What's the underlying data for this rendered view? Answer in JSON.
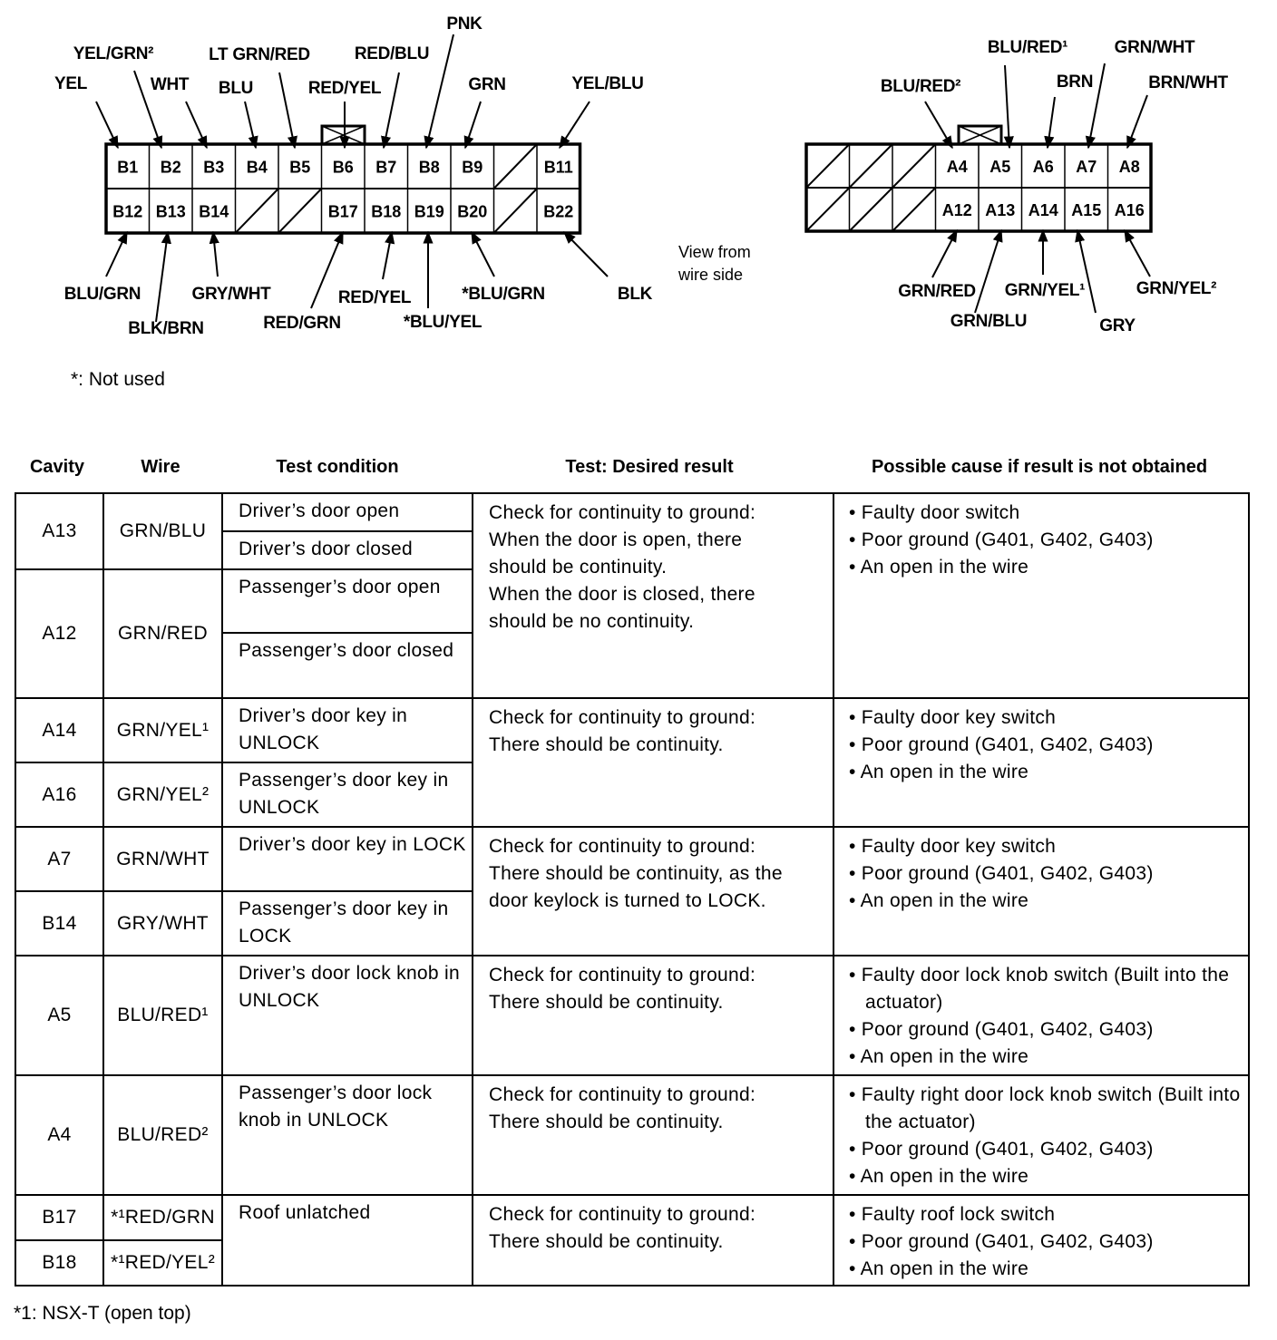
{
  "connector_b": {
    "cavities_top": [
      "B1",
      "B2",
      "B3",
      "B4",
      "B5",
      "B6",
      "B7",
      "B8",
      "B9",
      "",
      "B11"
    ],
    "cavities_bottom": [
      "B12",
      "B13",
      "B14",
      "",
      "",
      "B17",
      "B18",
      "B19",
      "B20",
      "",
      "B22"
    ],
    "wires_top": [
      "YEL",
      "YEL/GRN²",
      "WHT",
      "BLU",
      "LT GRN/RED",
      "RED/YEL",
      "RED/BLU",
      "PNK",
      "GRN",
      "YEL/BLU"
    ],
    "wires_bottom": [
      "BLU/GRN",
      "BLK/BRN",
      "GRY/WHT",
      "RED/GRN",
      "RED/YEL",
      "*BLU/YEL",
      "*BLU/GRN",
      "BLK"
    ]
  },
  "connector_a": {
    "cavities_top": [
      "",
      "",
      "",
      "A4",
      "A5",
      "A6",
      "A7",
      "A8"
    ],
    "cavities_bottom": [
      "",
      "",
      "",
      "A12",
      "A13",
      "A14",
      "A15",
      "A16"
    ],
    "wires_top": [
      "BLU/RED²",
      "BLU/RED¹",
      "BRN",
      "GRN/WHT",
      "BRN/WHT"
    ],
    "wires_bottom": [
      "GRN/RED",
      "GRN/BLU",
      "GRN/YEL¹",
      "GRY",
      "GRN/YEL²"
    ]
  },
  "view_note": [
    "View from",
    "wire side"
  ],
  "not_used_note": "*: Not used",
  "table": {
    "headers": [
      "Cavity",
      "Wire",
      "Test condition",
      "Test: Desired result",
      "Possible cause if result is not obtained"
    ],
    "groups": [
      {
        "rows": [
          {
            "cavity": "A13",
            "wire": "GRN/BLU",
            "conditions": [
              "Driver’s door open",
              "Driver’s door closed"
            ]
          },
          {
            "cavity": "A12",
            "wire": "GRN/RED",
            "conditions": [
              "Passenger’s door open",
              "Passenger’s door closed"
            ]
          }
        ],
        "result": [
          "Check for continuity to ground:",
          "When the door is open, there",
          "should be continuity.",
          "When the door is closed, there",
          "should be no continuity."
        ],
        "causes": [
          "• Faulty door switch",
          "• Poor ground (G401, G402, G403)",
          "• An open in the wire"
        ]
      },
      {
        "rows": [
          {
            "cavity": "A14",
            "wire": "GRN/YEL¹",
            "conditions": [
              "Driver’s door key in UNLOCK"
            ]
          },
          {
            "cavity": "A16",
            "wire": "GRN/YEL²",
            "conditions": [
              "Passenger’s door key in UNLOCK"
            ]
          }
        ],
        "result": [
          "Check for continuity to ground:",
          "There should be continuity."
        ],
        "causes": [
          "• Faulty door key switch",
          "• Poor ground (G401, G402, G403)",
          "• An open in the wire"
        ]
      },
      {
        "rows": [
          {
            "cavity": "A7",
            "wire": "GRN/WHT",
            "conditions": [
              "Driver’s door key in LOCK"
            ]
          },
          {
            "cavity": "B14",
            "wire": "GRY/WHT",
            "conditions": [
              "Passenger’s door key in LOCK"
            ]
          }
        ],
        "result": [
          "Check for continuity to ground:",
          "There should be continuity, as the",
          "door keylock is turned to LOCK."
        ],
        "causes": [
          "• Faulty door key switch",
          "• Poor ground (G401, G402, G403)",
          "• An open in the wire"
        ]
      },
      {
        "rows": [
          {
            "cavity": "A5",
            "wire": "BLU/RED¹",
            "conditions": [
              "Driver’s door lock knob in UNLOCK"
            ]
          }
        ],
        "result": [
          "Check for continuity to ground:",
          "There should be continuity."
        ],
        "causes": [
          "• Faulty door lock knob switch (Built into the actuator)",
          "• Poor ground (G401, G402, G403)",
          "• An open in the wire"
        ]
      },
      {
        "rows": [
          {
            "cavity": "A4",
            "wire": "BLU/RED²",
            "conditions": [
              "Passenger’s door lock knob in UNLOCK"
            ]
          }
        ],
        "result": [
          "Check for continuity to ground:",
          "There should be continuity."
        ],
        "causes": [
          "• Faulty right door lock knob switch (Built into the actuator)",
          "• Poor ground (G401, G402, G403)",
          "• An open in the wire"
        ]
      },
      {
        "rows": [
          {
            "cavity": "B17",
            "wire": "*¹RED/GRN"
          },
          {
            "cavity": "B18",
            "wire": "*¹RED/YEL²"
          }
        ],
        "condition": "Roof unlatched",
        "result": [
          "Check for continuity to ground:",
          "There should be continuity."
        ],
        "causes": [
          "• Faulty roof lock switch",
          "• Poor ground (G401, G402, G403)",
          "• An open in the wire"
        ]
      }
    ]
  },
  "footnote": "*1: NSX-T (open top)"
}
